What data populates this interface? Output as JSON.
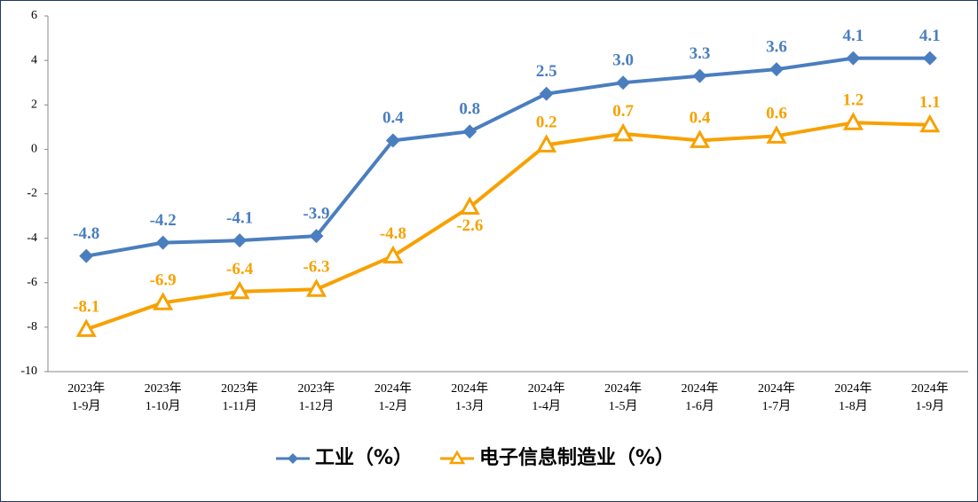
{
  "chart_data": {
    "type": "line",
    "categories": [
      "2023年\n1-9月",
      "2023年\n1-10月",
      "2023年\n1-11月",
      "2023年\n1-12月",
      "2024年\n1-2月",
      "2024年\n1-3月",
      "2024年\n1-4月",
      "2024年\n1-5月",
      "2024年\n1-6月",
      "2024年\n1-7月",
      "2024年\n1-8月",
      "2024年\n1-9月"
    ],
    "series": [
      {
        "name": "工业（%）",
        "color": "#4a7ebf",
        "marker": "diamond",
        "values": [
          -4.8,
          -4.2,
          -4.1,
          -3.9,
          0.4,
          0.8,
          2.5,
          3.0,
          3.3,
          3.6,
          4.1,
          4.1
        ],
        "value_labels": [
          "-4.8",
          "-4.2",
          "-4.1",
          "-3.9",
          "0.4",
          "0.8",
          "2.5",
          "3.0",
          "3.3",
          "3.6",
          "4.1",
          "4.1"
        ]
      },
      {
        "name": "电子信息制造业（%）",
        "color": "#f7a100",
        "marker": "triangle",
        "values": [
          -8.1,
          -6.9,
          -6.4,
          -6.3,
          -4.8,
          -2.6,
          0.2,
          0.7,
          0.4,
          0.6,
          1.2,
          1.1
        ]
      }
    ],
    "ylim": [
      -10,
      6
    ],
    "yticks": [
      -10,
      -8,
      -6,
      -4,
      -2,
      0,
      2,
      4,
      6
    ],
    "grid": false
  }
}
